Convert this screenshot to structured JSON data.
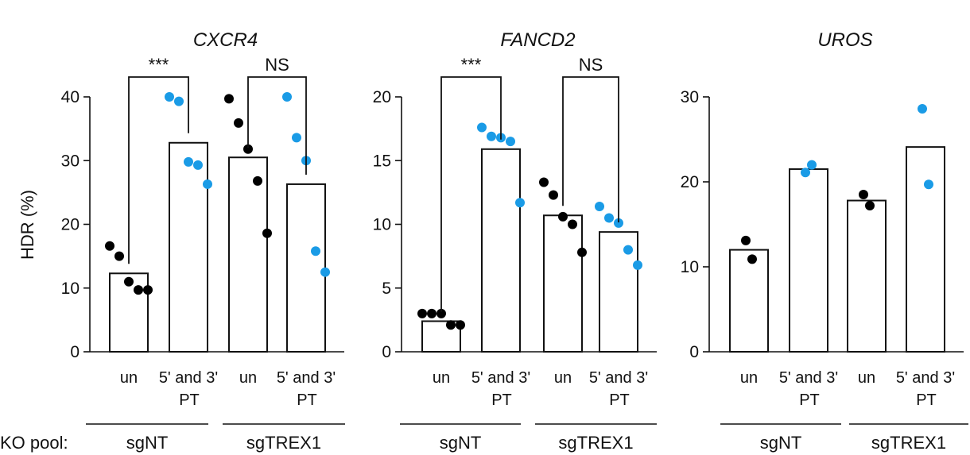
{
  "ylabel": "HDR (%)",
  "ko_pool_label": "KO pool:",
  "colors": {
    "untreated": "#000000",
    "treated": "#1a9be6"
  },
  "chart_data": [
    {
      "type": "bar",
      "title": "CXCR4",
      "ylabel": "HDR (%)",
      "ylim": [
        0,
        40
      ],
      "yticks": [
        "0",
        "10",
        "20",
        "30",
        "40"
      ],
      "categories": [
        "un",
        "5' and 3' PT",
        "un",
        "5' and 3' PT"
      ],
      "groups": [
        {
          "name": "sgNT",
          "categories": [
            0,
            1
          ]
        },
        {
          "name": "sgTREX1",
          "categories": [
            2,
            3
          ]
        }
      ],
      "values": [
        12.3,
        32.8,
        30.5,
        26.3
      ],
      "points": [
        [
          16.6,
          15.0,
          11.0,
          9.7,
          9.7
        ],
        [
          40.0,
          39.3,
          29.8,
          29.3,
          26.3
        ],
        [
          39.7,
          35.9,
          31.8,
          26.8,
          18.6
        ],
        [
          40.0,
          33.6,
          30.0,
          15.8,
          12.5
        ]
      ],
      "significance": [
        {
          "label": "***",
          "from": 0,
          "to": 1,
          "y": 43.0
        },
        {
          "label": "NS",
          "from": 2,
          "to": 3,
          "y": 43.0
        }
      ]
    },
    {
      "type": "bar",
      "title": "FANCD2",
      "ylim": [
        0,
        20
      ],
      "yticks": [
        "0",
        "5",
        "10",
        "15",
        "20"
      ],
      "categories": [
        "un",
        "5' and 3' PT",
        "un",
        "5' and 3' PT"
      ],
      "groups": [
        {
          "name": "sgNT",
          "categories": [
            0,
            1
          ]
        },
        {
          "name": "sgTREX1",
          "categories": [
            2,
            3
          ]
        }
      ],
      "values": [
        2.4,
        15.9,
        10.7,
        9.4
      ],
      "points": [
        [
          3.0,
          3.0,
          3.0,
          2.1,
          2.1
        ],
        [
          17.6,
          16.9,
          16.8,
          16.5,
          11.7
        ],
        [
          13.3,
          12.3,
          10.6,
          10.0,
          7.8
        ],
        [
          11.4,
          10.5,
          10.1,
          8.0,
          6.8
        ]
      ],
      "significance": [
        {
          "label": "***",
          "from": 0,
          "to": 1,
          "y": 19.5
        },
        {
          "label": "NS",
          "from": 2,
          "to": 3,
          "y": 19.5
        }
      ]
    },
    {
      "type": "bar",
      "title": "UROS",
      "ylim": [
        0,
        30
      ],
      "yticks": [
        "0",
        "10",
        "20",
        "30"
      ],
      "categories": [
        "un",
        "5' and 3' PT",
        "un",
        "5' and 3' PT"
      ],
      "groups": [
        {
          "name": "sgNT",
          "categories": [
            0,
            1
          ]
        },
        {
          "name": "sgTREX1",
          "categories": [
            2,
            3
          ]
        }
      ],
      "values": [
        12.0,
        21.5,
        17.8,
        24.1
      ],
      "points": [
        [
          13.1,
          10.9
        ],
        [
          21.1,
          22.0
        ],
        [
          18.5,
          17.2
        ],
        [
          28.6,
          19.7
        ]
      ],
      "significance": []
    }
  ]
}
